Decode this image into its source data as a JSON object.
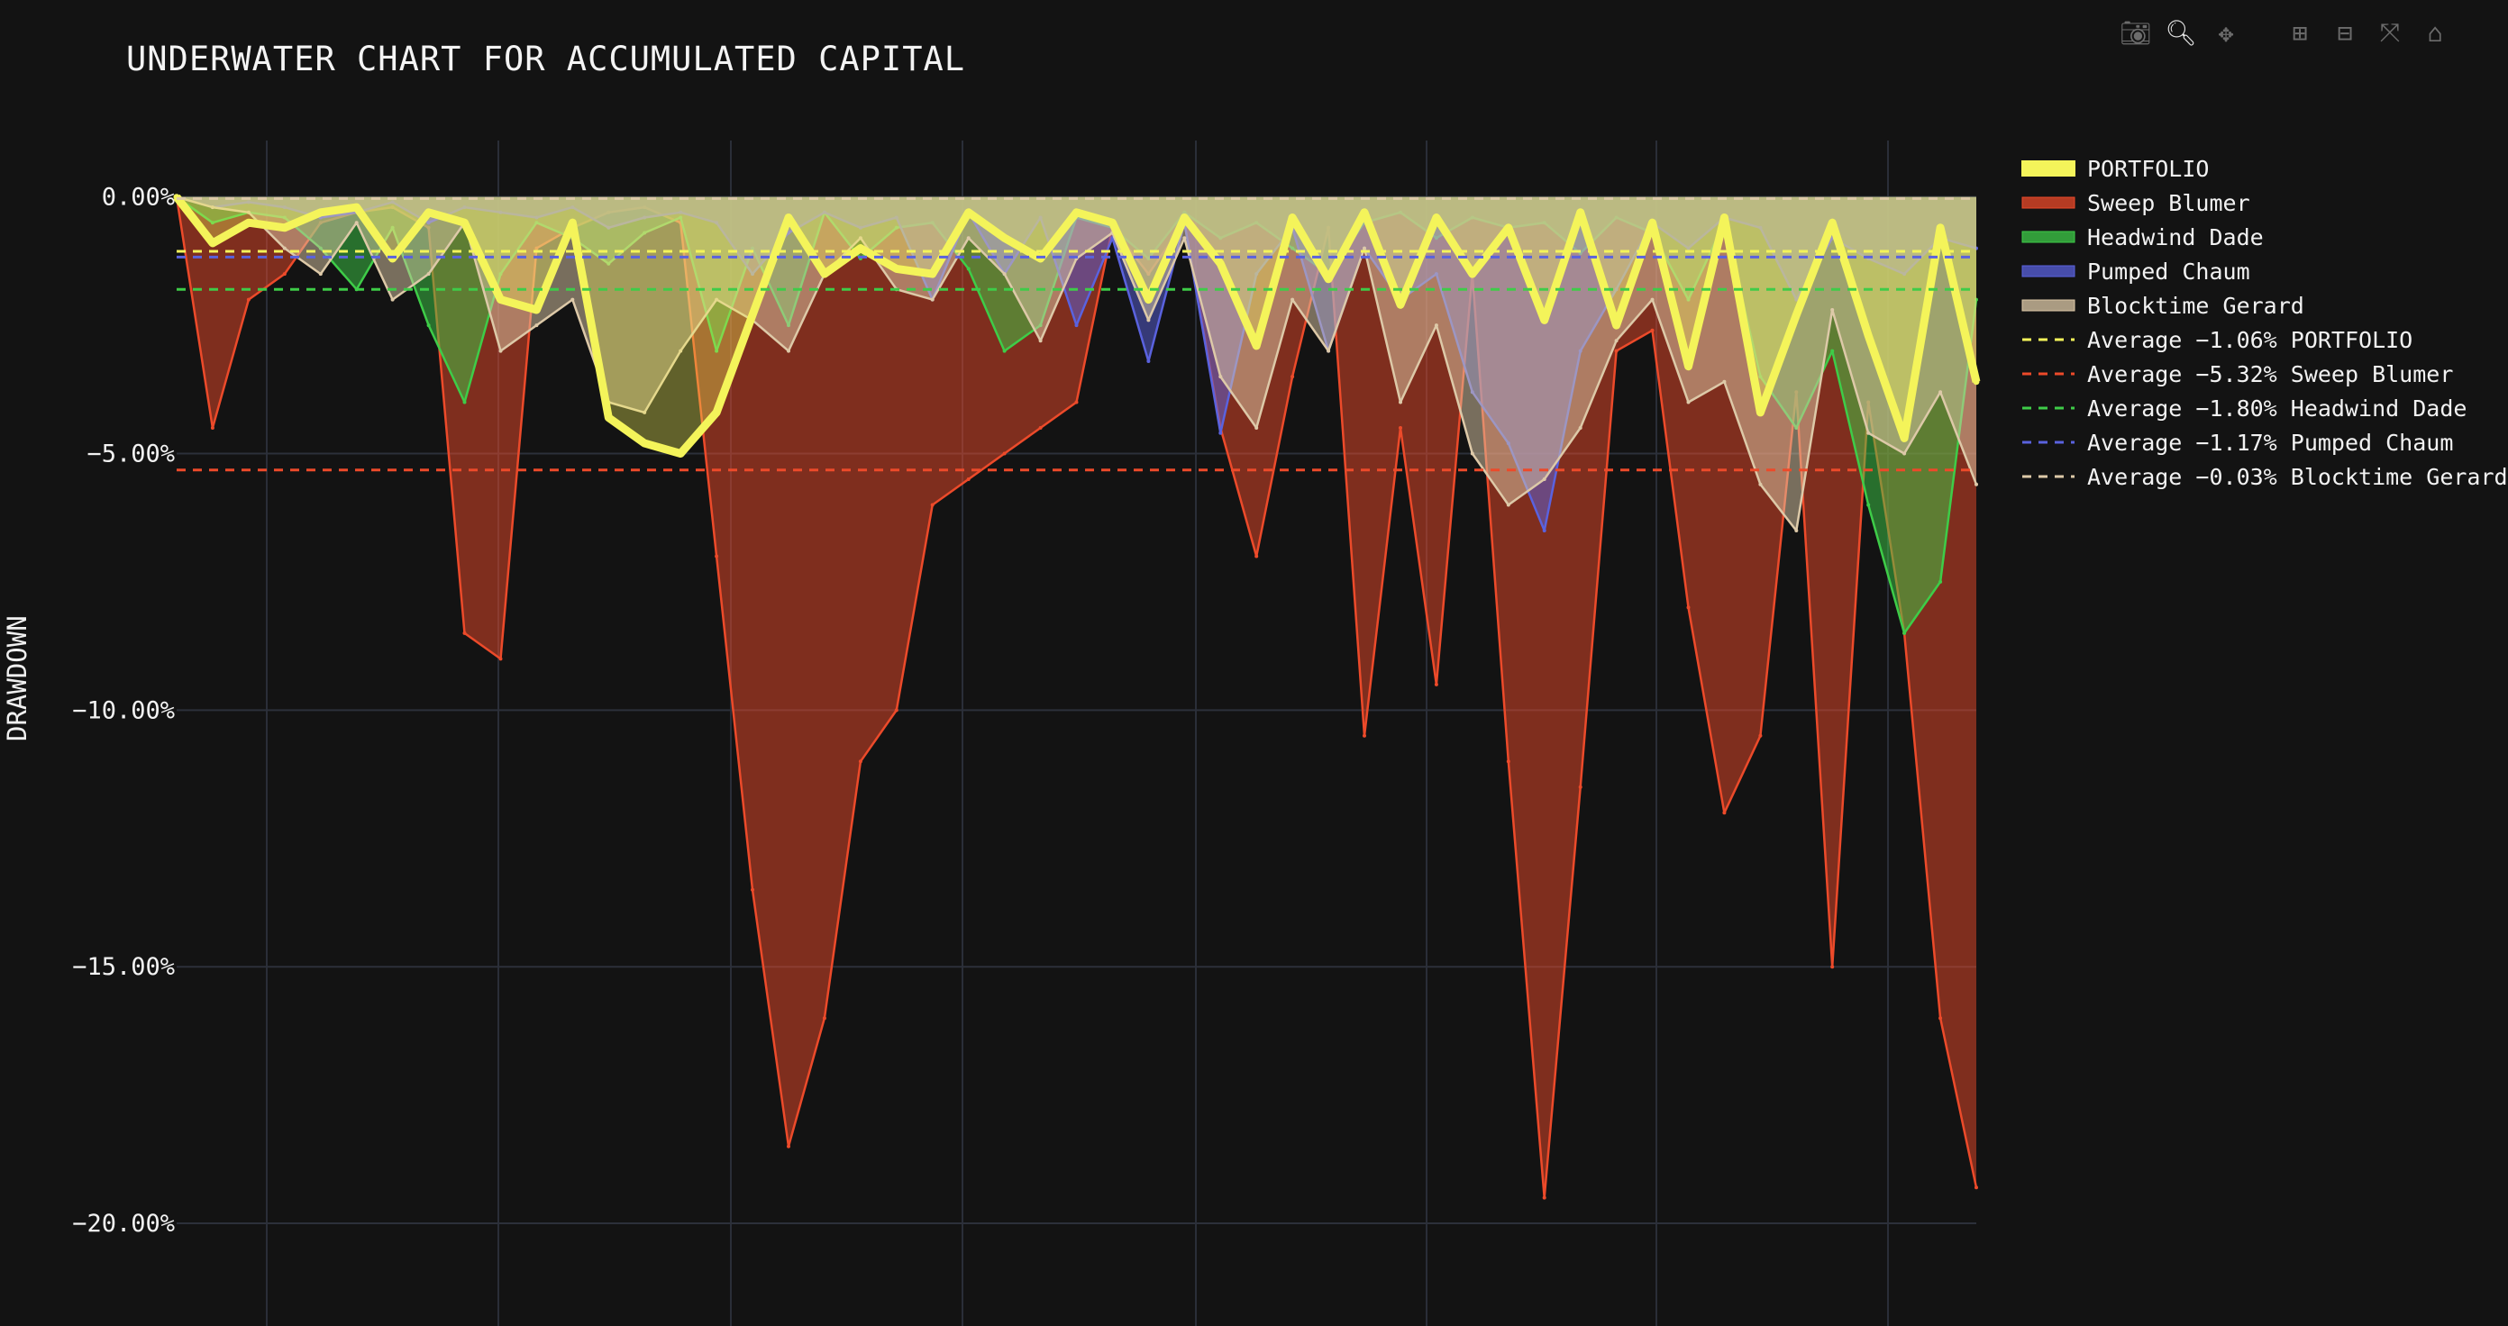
{
  "chart_data": {
    "type": "area",
    "title": "UNDERWATER CHART FOR ACCUMULATED CAPITAL",
    "ylabel": "DRAWDOWN",
    "xlabel": "",
    "ylim": [
      -22.0,
      1.1
    ],
    "yticks": [
      0,
      -5,
      -10,
      -15,
      -20
    ],
    "ytick_labels": [
      "0.00%",
      "−5.00%",
      "−10.00%",
      "−15.00%",
      "−20.00%"
    ],
    "x": [
      0,
      2,
      4,
      6,
      8,
      10,
      12,
      14,
      16,
      18,
      20,
      22,
      24,
      26,
      28,
      30,
      32,
      34,
      36,
      38,
      40,
      42,
      44,
      46,
      48,
      50,
      52,
      54,
      56,
      58,
      60,
      62,
      64,
      66,
      68,
      70,
      72,
      74,
      76,
      78,
      80,
      82,
      84,
      86,
      88,
      90,
      92,
      94,
      96,
      98,
      100
    ],
    "grid": true,
    "legend_position": "top-right, outside plot",
    "series": [
      {
        "name": "PORTFOLIO",
        "color": "#f4f45a",
        "values": [
          0,
          -0.9,
          -0.5,
          -0.6,
          -0.3,
          -0.2,
          -1.2,
          -0.3,
          -0.5,
          -2.0,
          -2.2,
          -0.5,
          -4.3,
          -4.8,
          -5.0,
          -4.2,
          -2.3,
          -0.4,
          -1.5,
          -1.0,
          -1.4,
          -1.5,
          -0.3,
          -0.8,
          -1.2,
          -0.3,
          -0.5,
          -2.0,
          -0.4,
          -1.3,
          -2.9,
          -0.4,
          -1.6,
          -0.3,
          -2.1,
          -0.4,
          -1.5,
          -0.6,
          -2.4,
          -0.3,
          -2.5,
          -0.5,
          -3.3,
          -0.4,
          -4.2,
          -2.3,
          -0.5,
          -2.7,
          -4.7,
          -0.6,
          -3.6
        ]
      },
      {
        "name": "Sweep Blumer",
        "color": "#ec4a2a",
        "values": [
          0,
          -4.5,
          -2.0,
          -1.5,
          -0.5,
          -0.3,
          -0.2,
          -0.6,
          -8.5,
          -9.0,
          -1.0,
          -0.6,
          -0.3,
          -0.2,
          -0.5,
          -7.0,
          -13.5,
          -18.5,
          -16.0,
          -11.0,
          -10.0,
          -6.0,
          -5.5,
          -5.0,
          -4.5,
          -4.0,
          -0.6,
          -1.5,
          -0.5,
          -4.5,
          -7.0,
          -3.5,
          -0.6,
          -10.5,
          -4.5,
          -9.5,
          -1.5,
          -11.0,
          -19.5,
          -11.5,
          -3.0,
          -2.6,
          -8.0,
          -12.0,
          -10.5,
          -3.8,
          -15.0,
          -4.0,
          -8.5,
          -16.0,
          -19.3
        ]
      },
      {
        "name": "Headwind Dade",
        "color": "#3ecc48",
        "values": [
          0,
          -0.5,
          -0.3,
          -0.4,
          -1.0,
          -1.8,
          -0.6,
          -2.5,
          -4.0,
          -1.5,
          -0.5,
          -0.8,
          -1.3,
          -0.7,
          -0.4,
          -3.0,
          -1.0,
          -2.5,
          -0.3,
          -1.2,
          -0.6,
          -0.5,
          -1.4,
          -3.0,
          -2.5,
          -0.4,
          -0.6,
          -1.2,
          -0.3,
          -0.8,
          -0.5,
          -1.0,
          -1.5,
          -0.5,
          -0.3,
          -0.8,
          -0.4,
          -0.6,
          -0.5,
          -1.1,
          -0.4,
          -0.7,
          -2.0,
          -0.5,
          -3.5,
          -4.5,
          -3.0,
          -6.0,
          -8.5,
          -7.5,
          -2.0
        ]
      },
      {
        "name": "Pumped Chaum",
        "color": "#5a62de",
        "values": [
          0,
          -0.2,
          -0.1,
          -0.2,
          -0.4,
          -0.3,
          -0.1,
          -0.5,
          -0.2,
          -0.3,
          -0.4,
          -0.2,
          -0.6,
          -0.4,
          -0.3,
          -0.5,
          -1.5,
          -0.7,
          -0.3,
          -0.6,
          -0.4,
          -2.0,
          -0.3,
          -1.5,
          -0.4,
          -2.5,
          -0.8,
          -3.2,
          -0.5,
          -4.6,
          -1.5,
          -0.6,
          -3.0,
          -1.0,
          -2.0,
          -1.5,
          -3.8,
          -4.8,
          -6.5,
          -3.0,
          -1.8,
          -0.5,
          -1.0,
          -0.4,
          -0.6,
          -2.0,
          -0.8,
          -1.2,
          -1.5,
          -0.8,
          -1.0
        ]
      },
      {
        "name": "Blocktime Gerard",
        "color": "#ddc9a8",
        "values": [
          0,
          -0.2,
          -0.3,
          -1.0,
          -1.5,
          -0.5,
          -2.0,
          -1.5,
          -0.5,
          -3.0,
          -2.5,
          -2.0,
          -4.0,
          -4.2,
          -3.0,
          -2.0,
          -2.4,
          -3.0,
          -1.5,
          -0.8,
          -1.8,
          -2.0,
          -0.8,
          -1.5,
          -2.8,
          -1.2,
          -0.7,
          -2.4,
          -0.8,
          -3.5,
          -4.5,
          -2.0,
          -3.0,
          -1.0,
          -4.0,
          -2.5,
          -5.0,
          -6.0,
          -5.5,
          -4.5,
          -2.8,
          -2.0,
          -4.0,
          -3.6,
          -5.6,
          -6.5,
          -2.2,
          -4.6,
          -5.0,
          -3.8,
          -5.6
        ]
      }
    ],
    "averages": [
      {
        "label": "Average −1.06% PORTFOLIO",
        "value": -1.06,
        "color": "#f4f45a"
      },
      {
        "label": "Average −5.32% Sweep Blumer",
        "value": -5.32,
        "color": "#ec4a2a"
      },
      {
        "label": "Average −1.80% Headwind Dade",
        "value": -1.8,
        "color": "#3ecc48"
      },
      {
        "label": "Average −1.17% Pumped Chaum",
        "value": -1.17,
        "color": "#5a62de"
      },
      {
        "label": "Average −0.03% Blocktime Gerard",
        "value": -0.03,
        "color": "#ddc9a8"
      }
    ]
  },
  "modebar": [
    {
      "icon": "camera-icon",
      "glyph": "📷︎",
      "active": false
    },
    {
      "icon": "zoom-icon",
      "glyph": "🔍︎",
      "active": true
    },
    {
      "icon": "pan-icon",
      "glyph": "✥",
      "active": false
    },
    {
      "icon": "zoom-in-icon",
      "glyph": "⊞",
      "active": false
    },
    {
      "icon": "zoom-out-icon",
      "glyph": "⊟",
      "active": false
    },
    {
      "icon": "autoscale-icon",
      "glyph": "⤧",
      "active": false
    },
    {
      "icon": "reset-axes-icon",
      "glyph": "⌂",
      "active": false
    }
  ]
}
